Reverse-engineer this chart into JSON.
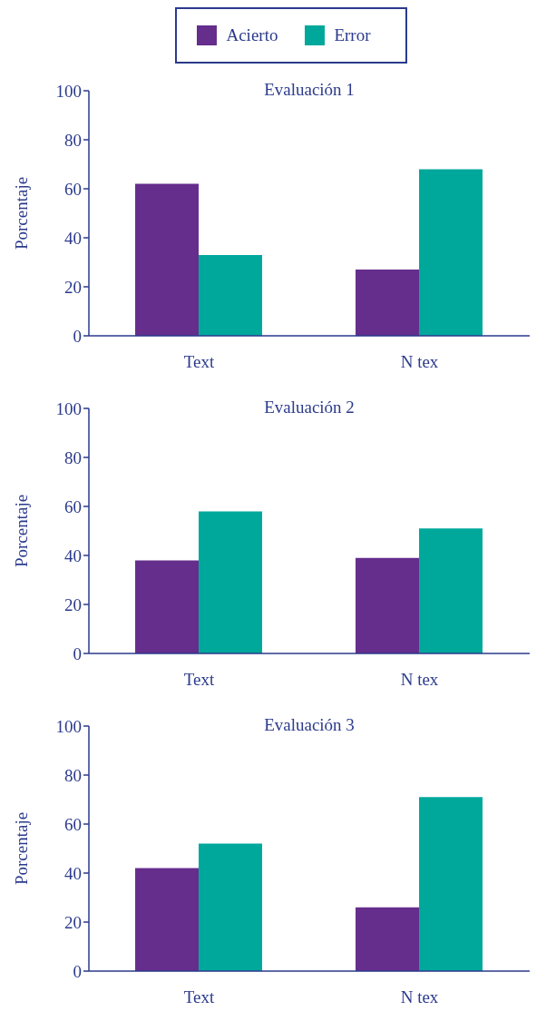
{
  "chart_data": [
    {
      "type": "bar",
      "title": "Evaluación 1",
      "ylabel": "Porcentaje",
      "categories": [
        "Text",
        "N tex"
      ],
      "series": [
        {
          "name": "Acierto",
          "color": "#652d8c",
          "values": [
            62,
            27
          ]
        },
        {
          "name": "Error",
          "color": "#00a89c",
          "values": [
            33,
            68
          ]
        }
      ],
      "ylim": [
        0,
        100
      ],
      "yticks": [
        0,
        20,
        40,
        60,
        80,
        100
      ],
      "legend": "top"
    },
    {
      "type": "bar",
      "title": "Evaluación 2",
      "ylabel": "Porcentaje",
      "categories": [
        "Text",
        "N tex"
      ],
      "series": [
        {
          "color": "#652d8c",
          "values": [
            38,
            39
          ]
        },
        {
          "color": "#00a89c",
          "values": [
            58,
            51
          ]
        }
      ],
      "ylim": [
        0,
        100
      ],
      "yticks": [
        0,
        20,
        40,
        60,
        80,
        100
      ]
    },
    {
      "type": "bar",
      "title": "Evaluación 3",
      "ylabel": "Porcentaje",
      "categories": [
        "Text",
        "N tex"
      ],
      "series": [
        {
          "color": "#652d8c",
          "values": [
            42,
            26
          ]
        },
        {
          "color": "#00a89c",
          "values": [
            52,
            71
          ]
        }
      ],
      "ylim": [
        0,
        100
      ],
      "yticks": [
        0,
        20,
        40,
        60,
        80,
        100
      ]
    }
  ]
}
